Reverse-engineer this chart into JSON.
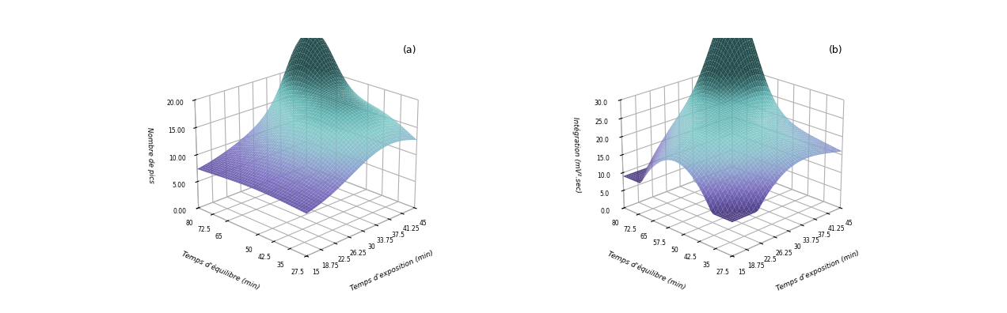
{
  "subplot_a": {
    "label": "(a)",
    "xlabel": "Temps d'exposition (min)",
    "ylabel": "Temps déquilibre (min)",
    "zlabel": "Nombre de pics",
    "x_ticks": [
      15,
      18.75,
      22.5,
      26.25,
      30,
      33.75,
      37.5,
      41.25,
      45
    ],
    "y_ticks": [
      27.5,
      35,
      42.5,
      50,
      65,
      72.5,
      80
    ],
    "zlim": [
      0,
      20
    ],
    "z_ticks": [
      0.0,
      5.0,
      10.0,
      15.0,
      20.0
    ],
    "z_tick_labels": [
      "0.00",
      "5.00",
      "10.00",
      "15.00",
      "20.00"
    ],
    "elev": 22,
    "azim": -135
  },
  "subplot_b": {
    "label": "(b)",
    "xlabel": "Temps d'exposition (min)",
    "ylabel": "Temps déquilibre (min)",
    "zlabel": "Intégration (mV².sec)",
    "x_ticks": [
      15,
      18.75,
      22.5,
      26.25,
      30,
      33.75,
      37.5,
      41.25,
      45
    ],
    "y_ticks": [
      27.5,
      35,
      42.5,
      50,
      57.5,
      65,
      72.5,
      80
    ],
    "zlim": [
      0,
      30
    ],
    "z_ticks": [
      0.0,
      5.0,
      10.0,
      15.0,
      20.0,
      25.0,
      30.0
    ],
    "z_tick_labels": [
      "0.0",
      "5.0",
      "10.0",
      "15.0",
      "20.0",
      "25.0",
      "30.0"
    ],
    "elev": 22,
    "azim": -135
  },
  "background_color": "#ffffff",
  "tick_fontsize": 5.5,
  "label_fontsize": 6.5,
  "tag_fontsize": 9,
  "vmin_a": 5,
  "vmax_a": 22,
  "vmin_b": 8,
  "vmax_b": 32
}
